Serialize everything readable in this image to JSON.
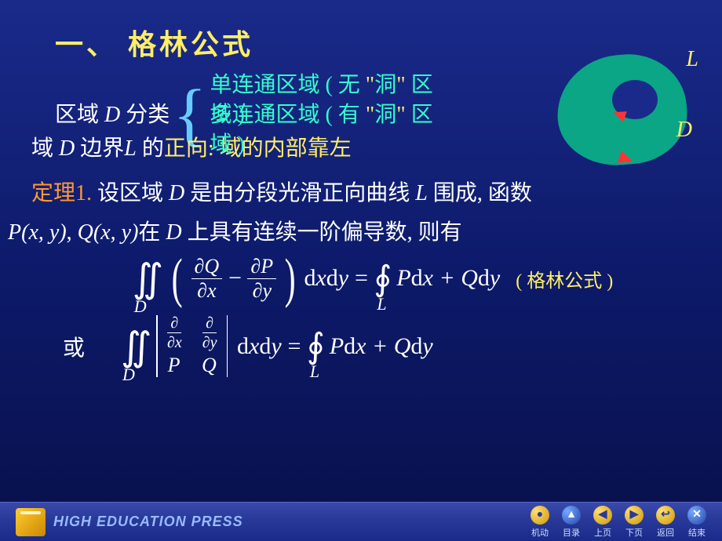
{
  "title": "一、 格林公式",
  "classify": {
    "prefix": "区域 ",
    "D": "D",
    "suffix": " 分类",
    "item1_a": "单连通区域 ( 无 ",
    "item1_hole_quote_open": "\"",
    "item1_hole": "洞",
    "item1_hole_quote_close": "\"",
    "item1_b": " 区",
    "item1_c": "域 )",
    "item2_prefix": "多",
    "item2_a": "连通区域 ( 有 ",
    "item2_b": " 区",
    "item2_c": "域 )"
  },
  "boundary": {
    "a": "域 ",
    "D": "D",
    "b": " 边界",
    "L": "L",
    "c": " 的",
    "c2": "正向:",
    "d": "  域的内部靠左"
  },
  "theorem": {
    "label": "定理1.",
    "a": " 设区域 ",
    "D": "D",
    "b": " 是由分段光滑正向曲线 ",
    "L": "L",
    "c": " 围成, 函数"
  },
  "funcs": {
    "P": "P",
    "Q": "Q",
    "xy_open": "(",
    "x": "x",
    "comma": ", ",
    "y": "y",
    "xy_close": ")",
    "sep": ", ",
    "a": "在 ",
    "D": "D",
    "b": " 上具有连续一阶偏导数, 则有"
  },
  "formula": {
    "int_D": "D",
    "dQ": "∂Q",
    "dx": "∂x",
    "dP": "∂P",
    "dy": "∂y",
    "minus": "−",
    "d": "d",
    "x": "x",
    "y": "y",
    "eq": " = ",
    "oint_L": "L",
    "P": "P",
    "plus": " + ",
    "Q": "Q",
    "note": "( 格林公式 )"
  },
  "or": "或",
  "det": {
    "d": "∂",
    "dx": "∂x",
    "dy": "∂y",
    "P": "P",
    "Q": "Q"
  },
  "region": {
    "L": "L",
    "D": "D"
  },
  "footer": {
    "press": "HIGH EDUCATION PRESS",
    "nav": [
      {
        "icon": "●",
        "label": "机动",
        "cls": ""
      },
      {
        "icon": "▲",
        "label": "目录",
        "cls": "blue"
      },
      {
        "icon": "◀",
        "label": "上页",
        "cls": ""
      },
      {
        "icon": "▶",
        "label": "下页",
        "cls": ""
      },
      {
        "icon": "↩",
        "label": "返回",
        "cls": ""
      },
      {
        "icon": "✕",
        "label": "结束",
        "cls": "blue"
      }
    ]
  }
}
